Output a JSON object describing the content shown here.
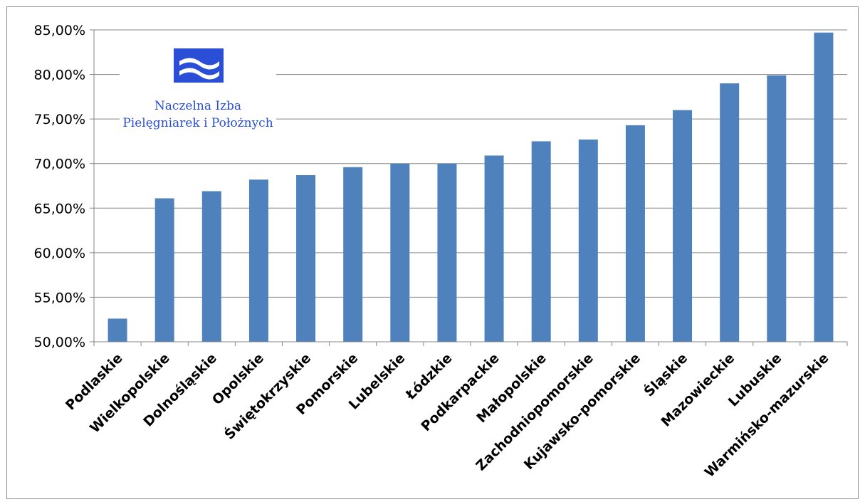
{
  "chart_data": {
    "type": "bar",
    "categories": [
      "Podlaskie",
      "Wielkopolskie",
      "Dolnośląskie",
      "Opolskie",
      "Świętokrzyskie",
      "Pomorskie",
      "Lubelskie",
      "Łódzkie",
      "Podkarpackie",
      "Małopolskie",
      "Zachodniopomorskie",
      "Kujawsko-pomorskie",
      "Śląskie",
      "Mazowieckie",
      "Lubuskie",
      "Warmińsko-mazurskie"
    ],
    "values": [
      52.6,
      66.1,
      66.9,
      68.2,
      68.7,
      69.6,
      70.0,
      70.0,
      70.9,
      72.5,
      72.7,
      74.3,
      76.0,
      79.0,
      79.9,
      84.7
    ],
    "ylim": [
      50,
      85
    ],
    "yticks": [
      50,
      55,
      60,
      65,
      70,
      75,
      80,
      85
    ],
    "ytick_labels": [
      "50,00%",
      "55,00%",
      "60,00%",
      "65,00%",
      "70,00%",
      "75,00%",
      "80,00%",
      "85,00%"
    ],
    "grid": true,
    "bar_color": "#4f81bd",
    "grid_color": "#868686"
  },
  "logo": {
    "name": "nipip-logo",
    "line1": "Naczelna Izba",
    "line2": "Pielęgniarek i Położnych",
    "color": "#2a4fd6"
  }
}
